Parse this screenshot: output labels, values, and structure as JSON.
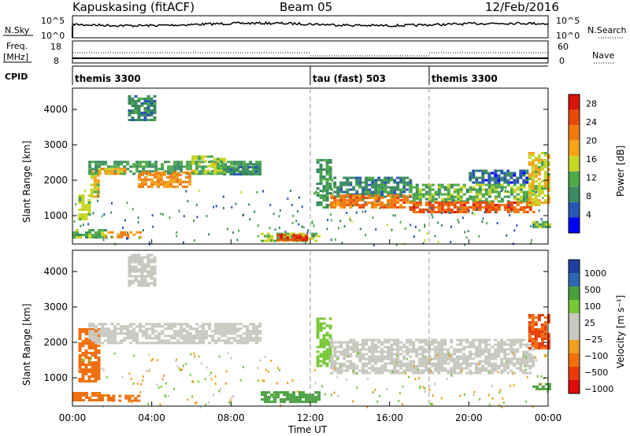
{
  "header": {
    "station": "Kapuskasing (fitACF)",
    "beam": "Beam 05",
    "date": "12/Feb/2016"
  },
  "noise_panel": {
    "left_label": "N.Sky",
    "left_ticks": [
      "10^5",
      "10^0"
    ],
    "right_ticks": [
      "10^5",
      "10^0"
    ],
    "right_label": "N.Search"
  },
  "freq_panel": {
    "left_label_1": "Freq.",
    "left_label_2": "[MHz]",
    "left_ticks": [
      "18",
      "8"
    ],
    "right_ticks": [
      "60",
      "0"
    ],
    "right_label": "Nave"
  },
  "cpid_panel": {
    "label": "CPID",
    "segments": [
      {
        "name": "themis 3300",
        "start_hour": 0
      },
      {
        "name": "tau (fast) 503",
        "start_hour": 12
      },
      {
        "name": "themis 3300",
        "start_hour": 18
      }
    ]
  },
  "colors": {
    "power_scale": [
      "#0000ff",
      "#2a56b5",
      "#3a8a62",
      "#4ea94a",
      "#c8d628",
      "#f5a31a",
      "#f07a10",
      "#e64a0a",
      "#d8140a"
    ],
    "velocity_scale": [
      "#1f3fa0",
      "#2f66b0",
      "#4aa040",
      "#7ac83a",
      "#c8c8c0",
      "#c8c8c0",
      "#f0a020",
      "#f07010",
      "#e83a0a",
      "#e00a0a"
    ]
  },
  "chart_data": [
    {
      "type": "heatmap",
      "name": "power",
      "ylabel": "Slant Range [km]",
      "yticks": [
        1000,
        2000,
        3000,
        4000
      ],
      "ylim": [
        200,
        4600
      ],
      "xlim": [
        0,
        24
      ],
      "colorbar_label": "Power [dB]",
      "colorbar_ticks": [
        4,
        8,
        12,
        16,
        20,
        24,
        28
      ],
      "colorbar_range": [
        0,
        30
      ],
      "regions": [
        {
          "t0": 0.0,
          "t1": 1.6,
          "r0": 400,
          "r1": 620,
          "value": 12
        },
        {
          "t0": 1.6,
          "t1": 3.4,
          "r0": 400,
          "r1": 560,
          "value": 20
        },
        {
          "t0": 0.3,
          "t1": 0.9,
          "r0": 900,
          "r1": 1600,
          "value": 14
        },
        {
          "t0": 0.9,
          "t1": 1.3,
          "r0": 1500,
          "r1": 2300,
          "value": 16
        },
        {
          "t0": 0.8,
          "t1": 9.5,
          "r0": 2150,
          "r1": 2550,
          "value": 10
        },
        {
          "t0": 1.3,
          "t1": 2.6,
          "r0": 2150,
          "r1": 2350,
          "value": 18
        },
        {
          "t0": 3.3,
          "t1": 6.0,
          "r0": 1800,
          "r1": 2250,
          "value": 20
        },
        {
          "t0": 6.0,
          "t1": 7.6,
          "r0": 2200,
          "r1": 2700,
          "value": 14
        },
        {
          "t0": 7.6,
          "t1": 9.5,
          "r0": 2150,
          "r1": 2400,
          "value": 8
        },
        {
          "t0": 2.8,
          "t1": 4.2,
          "r0": 3700,
          "r1": 4400,
          "value": 8
        },
        {
          "t0": 9.5,
          "t1": 12.4,
          "r0": 300,
          "r1": 520,
          "value": 14
        },
        {
          "t0": 10.3,
          "t1": 11.8,
          "r0": 320,
          "r1": 480,
          "value": 26
        },
        {
          "t0": 12.3,
          "t1": 13.0,
          "r0": 1200,
          "r1": 2600,
          "value": 10
        },
        {
          "t0": 13.0,
          "t1": 17.0,
          "r0": 1500,
          "r1": 2100,
          "value": 8
        },
        {
          "t0": 13.0,
          "t1": 17.0,
          "r0": 1250,
          "r1": 1600,
          "value": 22
        },
        {
          "t0": 17.0,
          "t1": 23.3,
          "r0": 1400,
          "r1": 1900,
          "value": 12
        },
        {
          "t0": 17.0,
          "t1": 23.3,
          "r0": 1100,
          "r1": 1400,
          "value": 24
        },
        {
          "t0": 20.0,
          "t1": 23.0,
          "r0": 1900,
          "r1": 2300,
          "value": 6
        },
        {
          "t0": 23.0,
          "t1": 24.0,
          "r0": 1300,
          "r1": 2800,
          "value": 16
        },
        {
          "t0": 23.2,
          "t1": 24.0,
          "r0": 650,
          "r1": 850,
          "value": 12
        }
      ]
    },
    {
      "type": "heatmap",
      "name": "velocity",
      "ylabel": "Slant Range [km]",
      "yticks": [
        1000,
        2000,
        3000,
        4000
      ],
      "ylim": [
        200,
        4600
      ],
      "xlim": [
        0,
        24
      ],
      "xlabel": "Time UT",
      "xticks": [
        "00:00",
        "04:00",
        "08:00",
        "12:00",
        "16:00",
        "20:00",
        "00:00"
      ],
      "colorbar_label": "Velocity [m s⁻¹]",
      "colorbar_ticks": [
        "1000",
        "500",
        "100",
        "25",
        "−25",
        "−100",
        "−500",
        "−1000"
      ],
      "regions": [
        {
          "t0": 0.0,
          "t1": 2.0,
          "r0": 380,
          "r1": 600,
          "value": -150
        },
        {
          "t0": 2.0,
          "t1": 3.4,
          "r0": 380,
          "r1": 520,
          "value": -200
        },
        {
          "t0": 0.3,
          "t1": 1.3,
          "r0": 900,
          "r1": 2400,
          "value": -120
        },
        {
          "t0": 0.8,
          "t1": 9.5,
          "r0": 2000,
          "r1": 2550,
          "value": 0
        },
        {
          "t0": 2.8,
          "t1": 4.2,
          "r0": 3600,
          "r1": 4500,
          "value": 0
        },
        {
          "t0": 9.5,
          "t1": 12.5,
          "r0": 300,
          "r1": 620,
          "value": 120
        },
        {
          "t0": 12.3,
          "t1": 13.0,
          "r0": 1300,
          "r1": 2700,
          "value": 80
        },
        {
          "t0": 13.0,
          "t1": 23.3,
          "r0": 1150,
          "r1": 2100,
          "value": 0
        },
        {
          "t0": 23.0,
          "t1": 24.0,
          "r0": 1800,
          "r1": 2800,
          "value": -500
        },
        {
          "t0": 23.2,
          "t1": 24.0,
          "r0": 650,
          "r1": 850,
          "value": 150
        }
      ]
    }
  ],
  "axis": {
    "xlabel": "Time UT",
    "xticks": [
      "00:00",
      "04:00",
      "08:00",
      "12:00",
      "16:00",
      "20:00",
      "00:00"
    ]
  }
}
